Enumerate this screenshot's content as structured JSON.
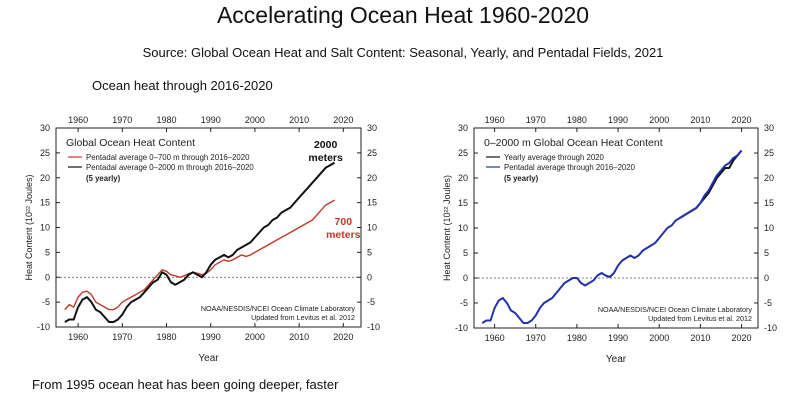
{
  "page": {
    "title": "Accelerating Ocean Heat 1960-2020",
    "source": "Source: Global Ocean Heat and Salt Content: Seasonal, Yearly, and Pentadal Fields, 2021",
    "subtitle": "Ocean heat through 2016-2020",
    "footer": "From 1995 ocean heat has been going deeper, faster"
  },
  "colors": {
    "red": "#c0392b",
    "black": "#111111",
    "blue": "#2233aa"
  },
  "chart_data": [
    {
      "type": "line",
      "title": "Global Ocean Heat Content",
      "xlabel": "Year",
      "ylabel": "Heat Content (10²² Joules)",
      "xlim": [
        1955,
        2024
      ],
      "ylim": [
        -10,
        30
      ],
      "xticks": [
        1960,
        1970,
        1980,
        1990,
        2000,
        2010,
        2020
      ],
      "yticks": [
        -10,
        -5,
        0,
        5,
        10,
        15,
        20,
        25,
        30
      ],
      "legend_position": "top-left",
      "credit": [
        "NOAA/NESDIS/NCEI Ocean Climate Laboratory",
        "Updated from Levitus et al. 2012"
      ],
      "annotations": [
        {
          "lines": [
            "2000",
            "meters"
          ],
          "x": 2016,
          "y": 26,
          "color": "black"
        },
        {
          "lines": [
            "700",
            "meters"
          ],
          "x": 2020,
          "y": 10.5,
          "color": "red"
        }
      ],
      "series": [
        {
          "name": "Pentadal average 0–700 m through 2016–2020",
          "color": "red",
          "x": [
            1957,
            1958,
            1959,
            1960,
            1961,
            1962,
            1963,
            1964,
            1965,
            1966,
            1967,
            1968,
            1969,
            1970,
            1971,
            1972,
            1973,
            1974,
            1975,
            1976,
            1977,
            1978,
            1979,
            1980,
            1981,
            1982,
            1983,
            1984,
            1985,
            1986,
            1987,
            1988,
            1989,
            1990,
            1991,
            1992,
            1993,
            1994,
            1995,
            1996,
            1997,
            1998,
            1999,
            2000,
            2001,
            2002,
            2003,
            2004,
            2005,
            2006,
            2007,
            2008,
            2009,
            2010,
            2011,
            2012,
            2013,
            2014,
            2015,
            2016,
            2017,
            2018
          ],
          "y": [
            -6.5,
            -5.5,
            -6,
            -4,
            -3,
            -2.8,
            -3.5,
            -5,
            -5.5,
            -6,
            -6.5,
            -6.5,
            -6,
            -5,
            -4.5,
            -4,
            -3.5,
            -3,
            -2.5,
            -1.5,
            -0.5,
            0.5,
            1.5,
            1.2,
            0.5,
            0.3,
            0,
            0.3,
            0.7,
            1,
            0.8,
            0.5,
            0.8,
            1.5,
            2.5,
            3,
            3.5,
            3.2,
            3.5,
            4,
            4.5,
            4.2,
            4.5,
            5,
            5.5,
            6,
            6.5,
            7,
            7.5,
            8,
            8.5,
            9,
            9.5,
            10,
            10.5,
            11,
            11.5,
            12.5,
            13.5,
            14.5,
            15,
            15.5
          ]
        },
        {
          "name": "Pentadal average 0–2000 m through 2016–2020",
          "note": "(5 yearly)",
          "color": "black",
          "x": [
            1957,
            1958,
            1959,
            1960,
            1961,
            1962,
            1963,
            1964,
            1965,
            1966,
            1967,
            1968,
            1969,
            1970,
            1971,
            1972,
            1973,
            1974,
            1975,
            1976,
            1977,
            1978,
            1979,
            1980,
            1981,
            1982,
            1983,
            1984,
            1985,
            1986,
            1987,
            1988,
            1989,
            1990,
            1991,
            1992,
            1993,
            1994,
            1995,
            1996,
            1997,
            1998,
            1999,
            2000,
            2001,
            2002,
            2003,
            2004,
            2005,
            2006,
            2007,
            2008,
            2009,
            2010,
            2011,
            2012,
            2013,
            2014,
            2015,
            2016,
            2017,
            2018
          ],
          "y": [
            -9,
            -8.5,
            -8.5,
            -6,
            -4.5,
            -4,
            -5,
            -6.5,
            -7,
            -8,
            -9,
            -9,
            -8.5,
            -7.5,
            -6,
            -5,
            -4.5,
            -4,
            -3,
            -2,
            -1,
            -0.5,
            1,
            0.5,
            -1,
            -1.5,
            -1,
            -0.5,
            0.5,
            1,
            0.5,
            0,
            1,
            2.5,
            3.5,
            4,
            4.5,
            4,
            4.5,
            5.5,
            6,
            6.5,
            7,
            8,
            9,
            10,
            10.5,
            11.5,
            12,
            13,
            13.5,
            14,
            15,
            16,
            17,
            18,
            19,
            20,
            21,
            22,
            22.5,
            23
          ]
        }
      ]
    },
    {
      "type": "line",
      "title": "0–2000 m Global Ocean Heat Content",
      "xlabel": "Year",
      "ylabel": "Heat Content (10²² Joules)",
      "xlim": [
        1955,
        2024
      ],
      "ylim": [
        -10,
        30
      ],
      "xticks": [
        1960,
        1970,
        1980,
        1990,
        2000,
        2010,
        2020
      ],
      "yticks": [
        -10,
        -5,
        0,
        5,
        10,
        15,
        20,
        25,
        30
      ],
      "legend_position": "top-left",
      "credit": [
        "NOAA/NESDIS/NCEI Ocean Climate Laboratory",
        "Updated from Levitus et al. 2012"
      ],
      "series": [
        {
          "name": "Yearly average through 2020",
          "color": "black",
          "x": [
            2005,
            2006,
            2007,
            2008,
            2009,
            2010,
            2011,
            2012,
            2013,
            2014,
            2015,
            2016,
            2017,
            2018,
            2019,
            2020
          ],
          "y": [
            12,
            12.5,
            13,
            13.5,
            14,
            15,
            16,
            17,
            18.5,
            20,
            21,
            22,
            22,
            23.5,
            24.5,
            25.5
          ]
        },
        {
          "name": "Pentadal average through 2016–2020",
          "note": "(5 yearly)",
          "color": "blue",
          "x": [
            1957,
            1958,
            1959,
            1960,
            1961,
            1962,
            1963,
            1964,
            1965,
            1966,
            1967,
            1968,
            1969,
            1970,
            1971,
            1972,
            1973,
            1974,
            1975,
            1976,
            1977,
            1978,
            1979,
            1980,
            1981,
            1982,
            1983,
            1984,
            1985,
            1986,
            1987,
            1988,
            1989,
            1990,
            1991,
            1992,
            1993,
            1994,
            1995,
            1996,
            1997,
            1998,
            1999,
            2000,
            2001,
            2002,
            2003,
            2004,
            2005,
            2006,
            2007,
            2008,
            2009,
            2010,
            2011,
            2012,
            2013,
            2014,
            2015,
            2016,
            2017,
            2018,
            2019,
            2020
          ],
          "y": [
            -9,
            -8.5,
            -8.5,
            -6,
            -4.5,
            -4,
            -5,
            -6.5,
            -7,
            -8,
            -9,
            -9,
            -8.5,
            -7.5,
            -6,
            -5,
            -4.5,
            -4,
            -3,
            -2,
            -1,
            -0.5,
            0,
            0,
            -1,
            -1.5,
            -1,
            -0.5,
            0.5,
            1,
            0.5,
            0.2,
            1,
            2.5,
            3.5,
            4,
            4.5,
            4,
            4.5,
            5.5,
            6,
            6.5,
            7,
            8,
            9,
            10,
            10.5,
            11.5,
            12,
            12.5,
            13,
            13.5,
            14,
            15,
            16.5,
            17.5,
            19,
            20.5,
            21.5,
            22.5,
            23,
            24,
            24.5,
            25.5
          ]
        }
      ]
    }
  ]
}
